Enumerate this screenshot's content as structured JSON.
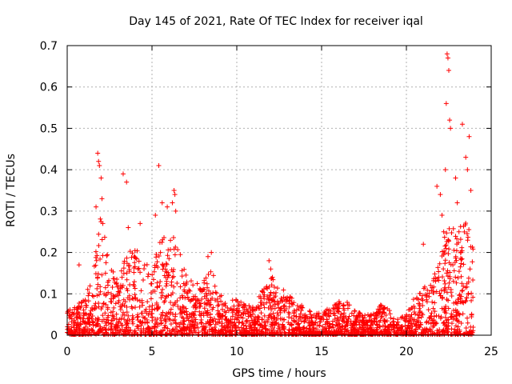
{
  "chart_data": {
    "type": "scatter",
    "title": "Day 145 of 2021, Rate Of TEC Index for receiver iqal",
    "xlabel": "GPS time / hours",
    "ylabel": "ROTI / TECUs",
    "xlim": [
      0,
      25
    ],
    "ylim": [
      0,
      0.7
    ],
    "xticks": [
      0,
      5,
      10,
      15,
      20,
      25
    ],
    "yticks": [
      0,
      0.1,
      0.2,
      0.3,
      0.4,
      0.5,
      0.6,
      0.7
    ],
    "xtick_labels": [
      "0",
      "5",
      "10",
      "15",
      "20",
      "25"
    ],
    "ytick_labels": [
      "0",
      "0.1",
      "0.2",
      "0.3",
      "0.4",
      "0.5",
      "0.6",
      "0.7"
    ],
    "grid": true,
    "marker": "+",
    "color": "#ff0000",
    "envelope": {
      "description": "approximate upper envelope of the dense point cloud (hours, ROTI)",
      "x": [
        0,
        0.5,
        1.0,
        1.5,
        2.0,
        2.5,
        3.0,
        3.5,
        4.0,
        4.5,
        5.0,
        5.5,
        6.0,
        6.5,
        7.0,
        7.5,
        8.0,
        8.5,
        9.0,
        9.5,
        10.0,
        10.5,
        11.0,
        11.5,
        12.0,
        12.5,
        13.0,
        13.5,
        14.0,
        14.5,
        15.0,
        15.5,
        16.0,
        16.5,
        17.0,
        17.5,
        18.0,
        18.5,
        19.0,
        19.5,
        20.0,
        20.5,
        21.0,
        21.5,
        22.0,
        22.5,
        23.0,
        23.5,
        24.0
      ],
      "y": [
        0.06,
        0.07,
        0.09,
        0.15,
        0.3,
        0.18,
        0.13,
        0.2,
        0.22,
        0.18,
        0.16,
        0.25,
        0.26,
        0.23,
        0.15,
        0.12,
        0.14,
        0.16,
        0.1,
        0.08,
        0.09,
        0.08,
        0.07,
        0.11,
        0.14,
        0.12,
        0.1,
        0.08,
        0.07,
        0.06,
        0.05,
        0.07,
        0.09,
        0.08,
        0.06,
        0.05,
        0.05,
        0.08,
        0.06,
        0.04,
        0.05,
        0.1,
        0.12,
        0.14,
        0.2,
        0.28,
        0.25,
        0.3,
        0.2
      ]
    },
    "outliers": {
      "x": [
        0.7,
        1.7,
        1.8,
        1.85,
        1.9,
        2.0,
        2.05,
        2.1,
        3.3,
        3.5,
        3.6,
        4.3,
        5.2,
        5.4,
        5.5,
        5.6,
        5.9,
        6.2,
        6.3,
        6.35,
        6.4,
        8.3,
        8.5,
        11.9,
        12.0,
        12.1,
        21.0,
        21.8,
        22.0,
        22.1,
        22.2,
        22.3,
        22.35,
        22.4,
        22.45,
        22.5,
        22.55,
        22.6,
        22.9,
        23.0,
        23.1,
        23.2,
        23.3,
        23.5,
        23.6,
        23.7,
        23.8
      ],
      "y": [
        0.17,
        0.31,
        0.44,
        0.42,
        0.41,
        0.38,
        0.33,
        0.27,
        0.39,
        0.37,
        0.26,
        0.27,
        0.29,
        0.41,
        0.2,
        0.32,
        0.31,
        0.32,
        0.35,
        0.34,
        0.3,
        0.19,
        0.2,
        0.18,
        0.16,
        0.14,
        0.22,
        0.36,
        0.34,
        0.29,
        0.25,
        0.4,
        0.56,
        0.68,
        0.67,
        0.64,
        0.52,
        0.5,
        0.38,
        0.32,
        0.25,
        0.2,
        0.51,
        0.43,
        0.4,
        0.48,
        0.35
      ]
    }
  }
}
